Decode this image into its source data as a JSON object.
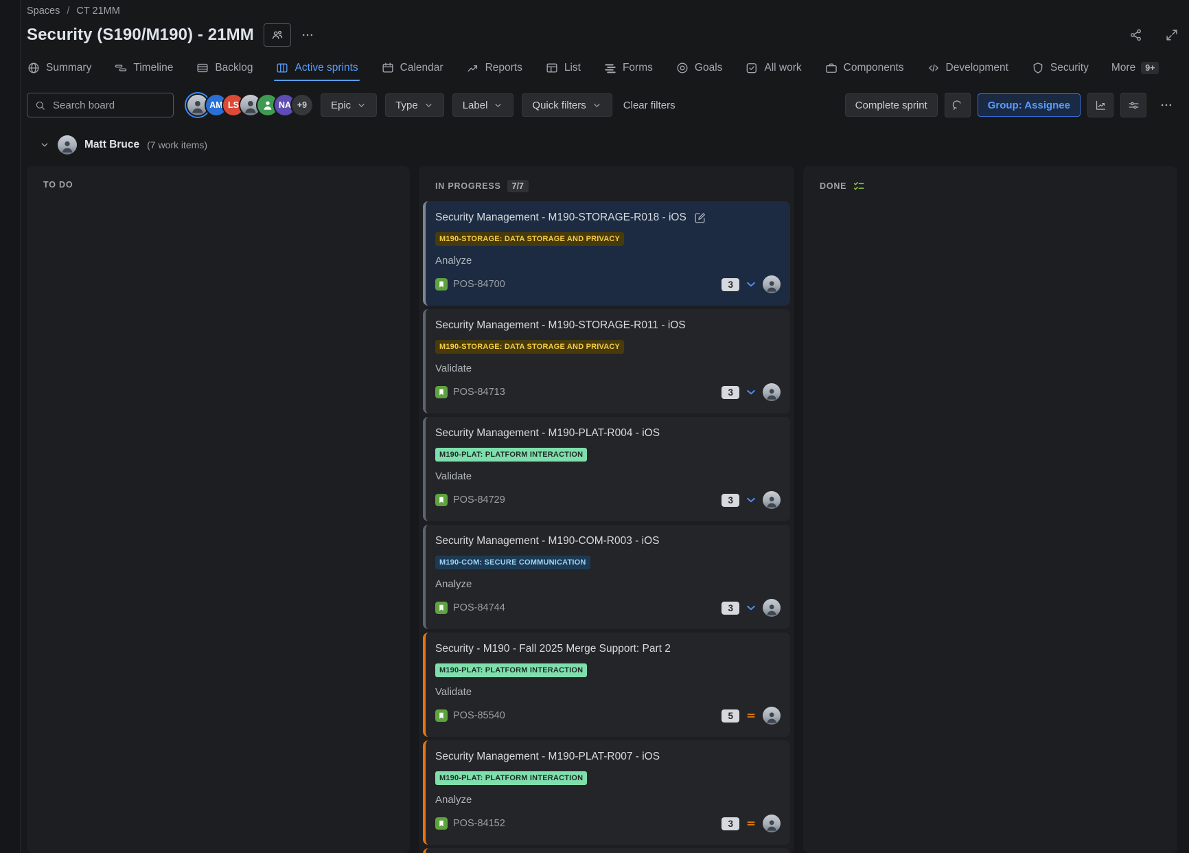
{
  "colors": {
    "accent_blue": "#579DFF",
    "selected_card_bg": "#1C2B41",
    "orange_bar": "#E8740C",
    "gray_bar": "#5C6670",
    "yellow_badge_bg": "#473A0C",
    "yellow_badge_text": "#F5CD47",
    "green_badge_bg": "#7EDFAC",
    "blue_badge_bg": "#1C3A54",
    "story_icon_green": "#5EA33F",
    "done_icon_green": "#94C748",
    "priority_low_blue": "#4E8FF7",
    "priority_medium_orange": "#DD7A12"
  },
  "breadcrumb": {
    "items": [
      "Spaces",
      "CT 21MM"
    ],
    "separator": "/"
  },
  "header": {
    "title": "Security (S190/M190) - 21MM"
  },
  "tabs": [
    {
      "label": "Summary",
      "icon": "globe"
    },
    {
      "label": "Timeline",
      "icon": "timeline"
    },
    {
      "label": "Backlog",
      "icon": "backlog"
    },
    {
      "label": "Active sprints",
      "icon": "board",
      "active": true
    },
    {
      "label": "Calendar",
      "icon": "calendar"
    },
    {
      "label": "Reports",
      "icon": "reports"
    },
    {
      "label": "List",
      "icon": "table"
    },
    {
      "label": "Forms",
      "icon": "forms"
    },
    {
      "label": "Goals",
      "icon": "goals"
    },
    {
      "label": "All work",
      "icon": "all-work"
    },
    {
      "label": "Components",
      "icon": "components"
    },
    {
      "label": "Development",
      "icon": "development"
    },
    {
      "label": "Security",
      "icon": "shield"
    },
    {
      "label": "More",
      "icon": null,
      "badge": "9+"
    }
  ],
  "toolbar": {
    "search_placeholder": "Search board",
    "avatars": [
      {
        "type": "photo",
        "ring": true
      },
      {
        "type": "initials",
        "initials": "AM",
        "color": "#2970D6"
      },
      {
        "type": "initials",
        "initials": "LS",
        "color": "#DC4B38"
      },
      {
        "type": "photo"
      },
      {
        "type": "person-icon",
        "color": "#3F9B52"
      },
      {
        "type": "initials",
        "initials": "NA",
        "color": "#5F4DB3"
      },
      {
        "type": "overflow",
        "label": "+9",
        "color": "#35373A"
      }
    ],
    "filters": [
      {
        "label": "Epic"
      },
      {
        "label": "Type"
      },
      {
        "label": "Label"
      },
      {
        "label": "Quick filters"
      }
    ],
    "clear_filters_label": "Clear filters",
    "complete_sprint_label": "Complete sprint",
    "group_button_label": "Group: Assignee"
  },
  "group_header": {
    "name": "Matt Bruce",
    "count_label": "(7 work items)"
  },
  "board": {
    "columns": [
      {
        "title": "TO DO",
        "cards": []
      },
      {
        "title": "IN PROGRESS",
        "count_badge": "7/7",
        "cards": [
          {
            "title": "Security Management - M190-STORAGE-R018 - iOS",
            "has_edit_icon": true,
            "label": "M190-STORAGE: DATA STORAGE AND PRIVACY",
            "label_style": "yellow",
            "status": "Analyze",
            "key": "POS-84700",
            "estimate": "3",
            "priority": "low",
            "bar": "gray",
            "selected": true
          },
          {
            "title": "Security Management - M190-STORAGE-R011 - iOS",
            "label": "M190-STORAGE: DATA STORAGE AND PRIVACY",
            "label_style": "yellow",
            "status": "Validate",
            "key": "POS-84713",
            "estimate": "3",
            "priority": "low",
            "bar": "gray"
          },
          {
            "title": "Security Management - M190-PLAT-R004 - iOS",
            "label": "M190-PLAT: PLATFORM INTERACTION",
            "label_style": "green",
            "status": "Validate",
            "key": "POS-84729",
            "estimate": "3",
            "priority": "low",
            "bar": "gray"
          },
          {
            "title": "Security Management - M190-COM-R003 - iOS",
            "label": "M190-COM: SECURE COMMUNICATION",
            "label_style": "blue",
            "status": "Analyze",
            "key": "POS-84744",
            "estimate": "3",
            "priority": "low",
            "bar": "gray"
          },
          {
            "title": "Security - M190 - Fall 2025 Merge Support: Part 2",
            "label": "M190-PLAT: PLATFORM INTERACTION",
            "label_style": "green",
            "status": "Validate",
            "key": "POS-85540",
            "estimate": "5",
            "priority": "medium",
            "bar": "orange"
          },
          {
            "title": "Security Management - M190-PLAT-R007 - iOS",
            "label": "M190-PLAT: PLATFORM INTERACTION",
            "label_style": "green",
            "status": "Analyze",
            "key": "POS-84152",
            "estimate": "3",
            "priority": "medium",
            "bar": "orange"
          },
          {
            "partial": true,
            "bar": "orange"
          }
        ]
      },
      {
        "title": "DONE",
        "header_icon": "checklist",
        "cards": []
      }
    ]
  }
}
